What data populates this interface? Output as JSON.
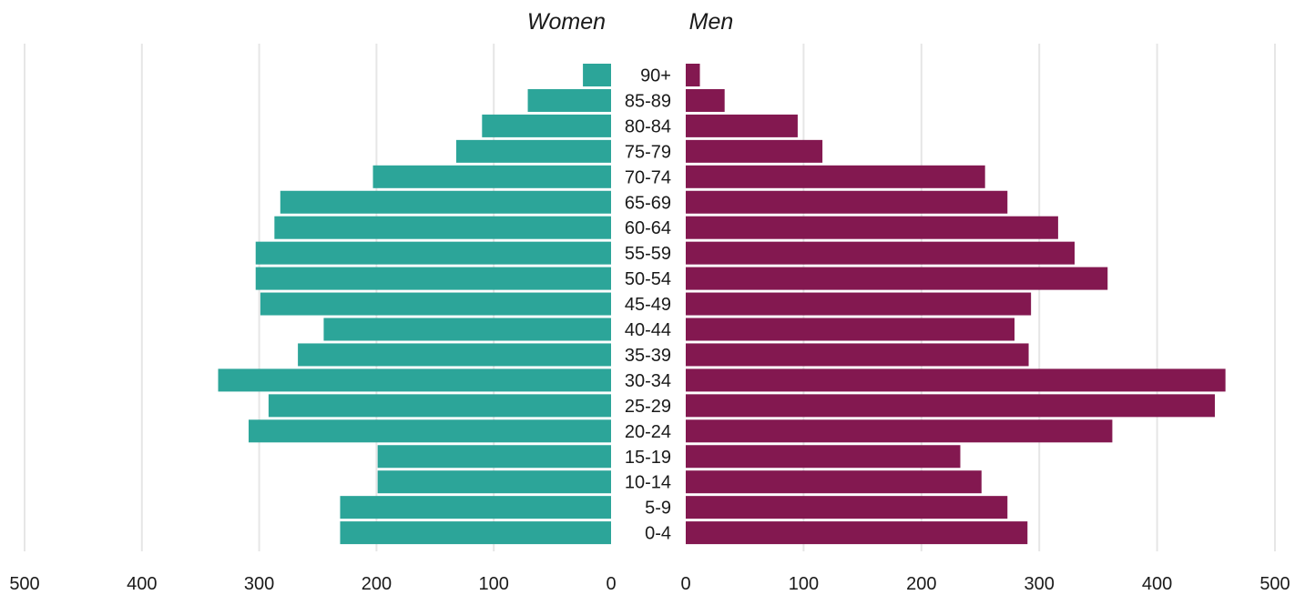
{
  "chart_data": {
    "type": "bar",
    "orientation": "horizontal",
    "layout": "population-pyramid",
    "categories": [
      "0-4",
      "5-9",
      "10-14",
      "15-19",
      "20-24",
      "25-29",
      "30-34",
      "35-39",
      "40-44",
      "45-49",
      "50-54",
      "55-59",
      "60-64",
      "65-69",
      "70-74",
      "75-79",
      "80-84",
      "85-89",
      "90+"
    ],
    "series": [
      {
        "name": "Women",
        "color": "#2ca599",
        "values": [
          231,
          231,
          199,
          199,
          309,
          292,
          335,
          267,
          245,
          299,
          303,
          303,
          287,
          282,
          203,
          132,
          110,
          71,
          24
        ]
      },
      {
        "name": "Men",
        "color": "#831850",
        "values": [
          290,
          273,
          251,
          233,
          362,
          449,
          458,
          291,
          279,
          293,
          358,
          330,
          316,
          273,
          254,
          116,
          95,
          33,
          12
        ]
      }
    ],
    "xlim": [
      0,
      500
    ],
    "xticks": [
      0,
      100,
      200,
      300,
      400,
      500
    ],
    "grid": true,
    "legend": "side titles above each half"
  }
}
